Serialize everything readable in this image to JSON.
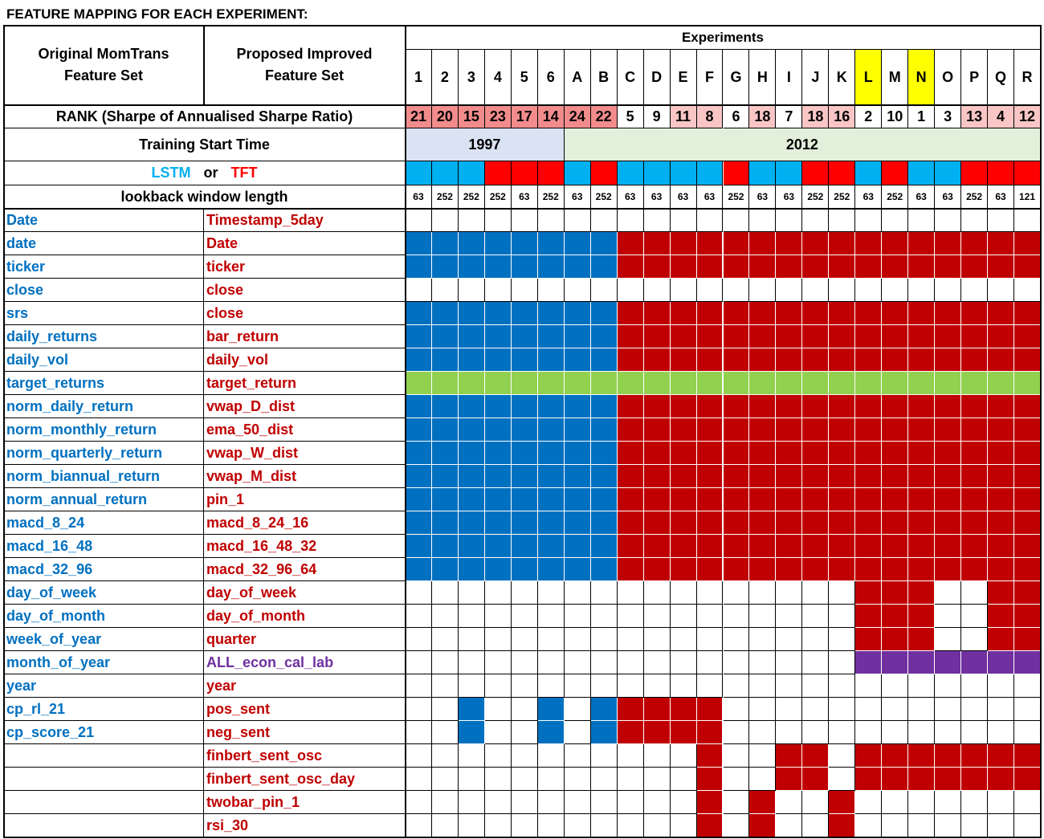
{
  "title": "FEATURE MAPPING FOR EACH EXPERIMENT:",
  "headers": {
    "original": [
      "Original MomTrans",
      "Feature Set"
    ],
    "proposed": [
      "Proposed Improved",
      "Feature Set"
    ],
    "experiments": "Experiments",
    "rank_label": "RANK (Sharpe of Annualised Sharpe Ratio)",
    "start_label": "Training Start Time",
    "start_1997": "1997",
    "start_2012": "2012",
    "model_lstm": "LSTM",
    "model_or": "or",
    "model_tft": "TFT",
    "lookback_label": "lookback window length"
  },
  "colors": {
    "blue": "#0070c0",
    "red": "#c00000",
    "green": "#92d050",
    "purple": "#7030a0",
    "lstm": "#00b0f0",
    "tft": "#ff0000",
    "highlight": "#ffff00",
    "rank_dark": "#f28c8c",
    "rank_light": "#f9c5c5",
    "start_1997_bg": "#dae3f3",
    "start_2012_bg": "#e2efda"
  },
  "experiments": [
    "1",
    "2",
    "3",
    "4",
    "5",
    "6",
    "A",
    "B",
    "C",
    "D",
    "E",
    "F",
    "G",
    "H",
    "I",
    "J",
    "K",
    "L",
    "M",
    "N",
    "O",
    "P",
    "Q",
    "R"
  ],
  "highlighted": [
    "L",
    "N"
  ],
  "ranks": [
    "21",
    "20",
    "15",
    "23",
    "17",
    "14",
    "24",
    "22",
    "5",
    "9",
    "11",
    "8",
    "6",
    "18",
    "7",
    "18",
    "16",
    "2",
    "10",
    "1",
    "3",
    "13",
    "4",
    "12"
  ],
  "rank_shade": [
    "d",
    "d",
    "d",
    "d",
    "d",
    "d",
    "d",
    "d",
    "w",
    "w",
    "l",
    "l",
    "w",
    "l",
    "w",
    "l",
    "l",
    "w",
    "w",
    "w",
    "w",
    "l",
    "l",
    "l"
  ],
  "models": [
    "LSTM",
    "LSTM",
    "LSTM",
    "TFT",
    "TFT",
    "TFT",
    "LSTM",
    "TFT",
    "LSTM",
    "LSTM",
    "LSTM",
    "LSTM",
    "TFT",
    "LSTM",
    "LSTM",
    "TFT",
    "TFT",
    "LSTM",
    "TFT",
    "LSTM",
    "LSTM",
    "TFT",
    "TFT",
    "TFT"
  ],
  "lookback": [
    "63",
    "252",
    "252",
    "252",
    "63",
    "252",
    "63",
    "252",
    "63",
    "63",
    "63",
    "63",
    "252",
    "63",
    "63",
    "252",
    "252",
    "63",
    "252",
    "63",
    "63",
    "252",
    "63",
    "121"
  ],
  "features": [
    {
      "orig": "Date",
      "proposed": "Timestamp_5day",
      "pcolor": "red",
      "cells": "WWWWWWWWWWWWWWWWWWWWWWWW"
    },
    {
      "orig": "date",
      "proposed": "Date",
      "pcolor": "red",
      "cells": "BBBBBBBBRRRRRRRRRRRRRRRR"
    },
    {
      "orig": "ticker",
      "proposed": "ticker",
      "pcolor": "red",
      "cells": "BBBBBBBBRRRRRRRRRRRRRRRR"
    },
    {
      "orig": "close",
      "proposed": "close",
      "pcolor": "red",
      "cells": "WWWWWWWWWWWWWWWWWWWWWWWW"
    },
    {
      "orig": "srs",
      "proposed": "close",
      "pcolor": "red",
      "cells": "BBBBBBBBRRRRRRRRRRRRRRRR"
    },
    {
      "orig": "daily_returns",
      "proposed": "bar_return",
      "pcolor": "red",
      "cells": "BBBBBBBBRRRRRRRRRRRRRRRR"
    },
    {
      "orig": "daily_vol",
      "proposed": "daily_vol",
      "pcolor": "red",
      "cells": "BBBBBBBBRRRRRRRRRRRRRRRR"
    },
    {
      "orig": "target_returns",
      "proposed": "target_return",
      "pcolor": "red",
      "cells": "GGGGGGGGGGGGGGGGGGGGGGGG"
    },
    {
      "orig": "norm_daily_return",
      "proposed": "vwap_D_dist",
      "pcolor": "red",
      "cells": "BBBBBBBBRRRRRRRRRRRRRRRR"
    },
    {
      "orig": "norm_monthly_return",
      "proposed": "ema_50_dist",
      "pcolor": "red",
      "cells": "BBBBBBBBRRRRRRRRRRRRRRRR"
    },
    {
      "orig": "norm_quarterly_return",
      "proposed": "vwap_W_dist",
      "pcolor": "red",
      "cells": "BBBBBBBBRRRRRRRRRRRRRRRR"
    },
    {
      "orig": "norm_biannual_return",
      "proposed": "vwap_M_dist",
      "pcolor": "red",
      "cells": "BBBBBBBBRRRRRRRRRRRRRRRR"
    },
    {
      "orig": "norm_annual_return",
      "proposed": "pin_1",
      "pcolor": "red",
      "cells": "BBBBBBBBRRRRRRRRRRRRRRRR"
    },
    {
      "orig": "macd_8_24",
      "proposed": "macd_8_24_16",
      "pcolor": "red",
      "cells": "BBBBBBBBRRRRRRRRRRRRRRRR"
    },
    {
      "orig": "macd_16_48",
      "proposed": "macd_16_48_32",
      "pcolor": "red",
      "cells": "BBBBBBBBRRRRRRRRRRRRRRRR"
    },
    {
      "orig": "macd_32_96",
      "proposed": "macd_32_96_64",
      "pcolor": "red",
      "cells": "BBBBBBBBRRRRRRRRRRRRRRRR"
    },
    {
      "orig": "day_of_week",
      "proposed": "day_of_week",
      "pcolor": "red",
      "cells": "WWWWWWWWWWWWWWWWWRRRWWRR"
    },
    {
      "orig": "day_of_month",
      "proposed": "day_of_month",
      "pcolor": "red",
      "cells": "WWWWWWWWWWWWWWWWWRRRWWRR"
    },
    {
      "orig": "week_of_year",
      "proposed": "quarter",
      "pcolor": "red",
      "cells": "WWWWWWWWWWWWWWWWWRRRWWRR"
    },
    {
      "orig": "month_of_year",
      "proposed": "ALL_econ_cal_lab",
      "pcolor": "purple",
      "cells": "WWWWWWWWWWWWWWWWWPPPPPPP"
    },
    {
      "orig": "year",
      "proposed": "year",
      "pcolor": "red",
      "cells": "WWWWWWWWWWWWWWWWWWWWWWWW"
    },
    {
      "orig": "cp_rl_21",
      "proposed": "pos_sent",
      "pcolor": "red",
      "cells": "WWBWWBWBRRRRWWWWWWWWWWWW"
    },
    {
      "orig": "cp_score_21",
      "proposed": "neg_sent",
      "pcolor": "red",
      "cells": "WWBWWBWBRRRRWWWWWWWWWWWW"
    },
    {
      "orig": "",
      "proposed": "finbert_sent_osc",
      "pcolor": "red",
      "cells": "WWWWWWWWWWWRWWRRWRRRRRRR"
    },
    {
      "orig": "",
      "proposed": "finbert_sent_osc_day",
      "pcolor": "red",
      "cells": "WWWWWWWWWWWRWWRRWRRRRRRR"
    },
    {
      "orig": "",
      "proposed": "twobar_pin_1",
      "pcolor": "red",
      "cells": "WWWWWWWWWWWRWRWWRWWWWWWW"
    },
    {
      "orig": "",
      "proposed": "rsi_30",
      "pcolor": "red",
      "cells": "WWWWWWWWWWWRWRWWRWWWWWWW"
    }
  ]
}
